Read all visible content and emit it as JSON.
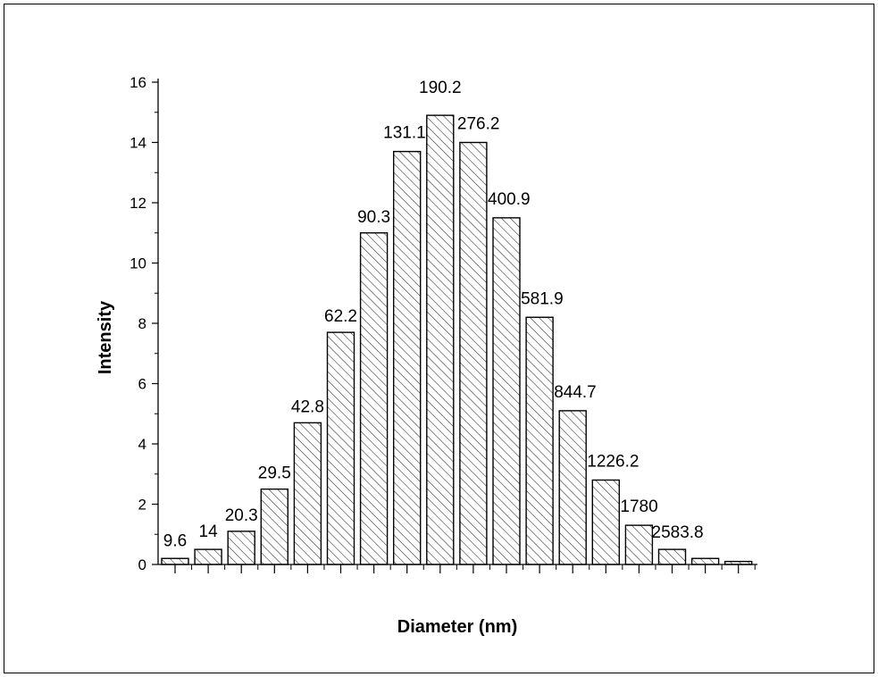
{
  "chart_data": {
    "type": "bar",
    "xlabel": "Diameter (nm)",
    "ylabel": "Intensity",
    "ylim": [
      0,
      16
    ],
    "yticks": [
      0,
      2,
      4,
      6,
      8,
      10,
      12,
      14,
      16
    ],
    "grid": false,
    "legend": "none",
    "bar_fill": "hatched",
    "bars": [
      {
        "value": 0.2,
        "label": "9.6"
      },
      {
        "value": 0.5,
        "label": "14"
      },
      {
        "value": 1.1,
        "label": "20.3"
      },
      {
        "value": 2.5,
        "label": "29.5"
      },
      {
        "value": 4.7,
        "label": "42.8"
      },
      {
        "value": 7.7,
        "label": "62.2"
      },
      {
        "value": 11.0,
        "label": "90.3"
      },
      {
        "value": 13.7,
        "label": "131.1"
      },
      {
        "value": 14.9,
        "label": "190.2"
      },
      {
        "value": 14.0,
        "label": "276.2"
      },
      {
        "value": 11.5,
        "label": "400.9"
      },
      {
        "value": 8.2,
        "label": "581.9"
      },
      {
        "value": 5.1,
        "label": "844.7"
      },
      {
        "value": 2.8,
        "label": "1226.2"
      },
      {
        "value": 1.3,
        "label": "1780"
      },
      {
        "value": 0.5,
        "label": "2583.8"
      },
      {
        "value": 0.2,
        "label": ""
      },
      {
        "value": 0.1,
        "label": ""
      }
    ]
  }
}
